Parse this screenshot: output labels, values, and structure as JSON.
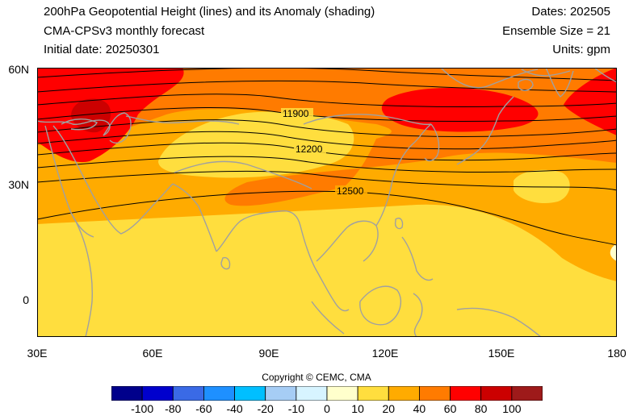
{
  "header": {
    "title_line1": "200hPa Geopotential Height (lines) and its Anomaly (shading)",
    "title_line2": "CMA-CPSv3 monthly forecast",
    "title_line3": "Initial date: 20250301",
    "dates": "Dates: 202505",
    "ensemble": "Ensemble Size = 21",
    "units": "Units: gpm"
  },
  "axes": {
    "lat_labels": [
      "60N",
      "30N",
      "0"
    ],
    "lon_labels": [
      "30E",
      "60E",
      "90E",
      "120E",
      "150E",
      "180"
    ]
  },
  "contour_labels": [
    "11900",
    "12200",
    "12500"
  ],
  "copyright": "Copyright © CEMC, CMA",
  "colorbar": {
    "colors": [
      "#00008b",
      "#0000cd",
      "#3a6ae6",
      "#1e90ff",
      "#00bfff",
      "#a6cdf5",
      "#d7f4ff",
      "#ffffcc",
      "#ffde3e",
      "#ffab00",
      "#ff7b00",
      "#ff0000",
      "#cc0000",
      "#9e1a1a"
    ],
    "labels": [
      "-100",
      "-80",
      "-60",
      "-40",
      "-20",
      "-10",
      "0",
      "10",
      "20",
      "40",
      "60",
      "80",
      "100"
    ]
  },
  "legend_colors": {
    "coast": "#a0a0a0",
    "contour": "#000000"
  }
}
